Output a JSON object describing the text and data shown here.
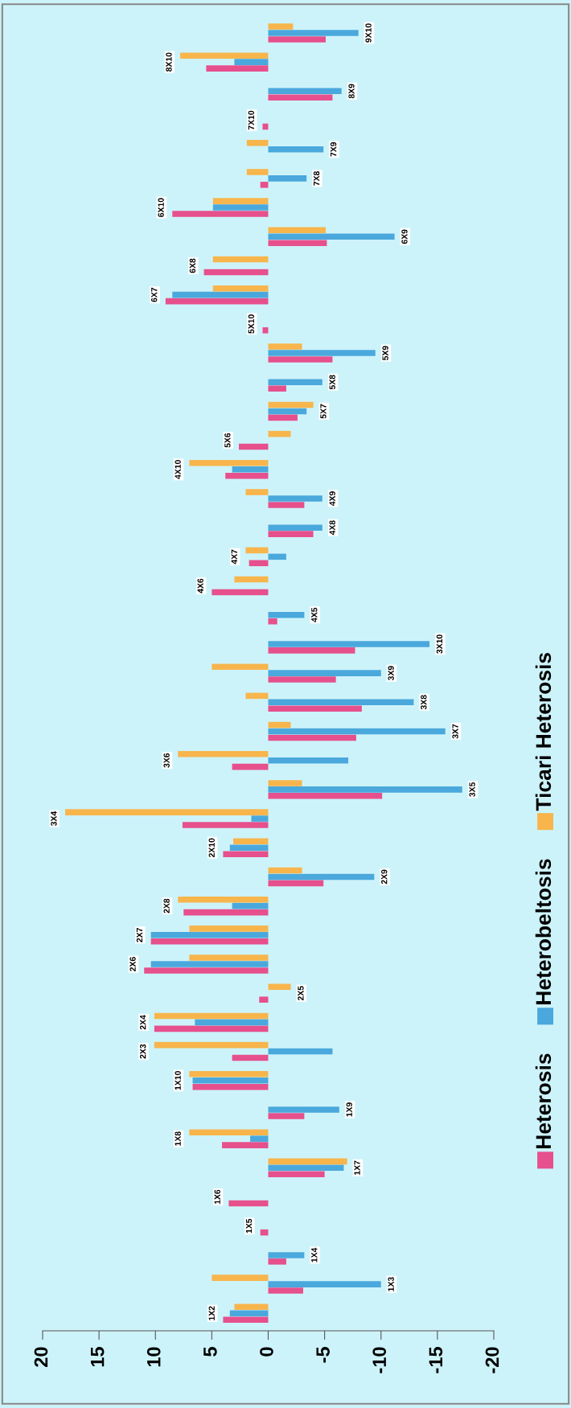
{
  "chart_data": {
    "type": "bar",
    "orientation": "horizontal",
    "categories": [
      "9X10",
      "8X10",
      "8X9",
      "7X10",
      "7X9",
      "7X8",
      "6X10",
      "6X9",
      "6X8",
      "6X7",
      "5X10",
      "5X9",
      "5X8",
      "5X7",
      "5X6",
      "4X10",
      "4X9",
      "4X8",
      "4X7",
      "4X6",
      "4X5",
      "3X10",
      "3X9",
      "3X8",
      "3X7",
      "3X6",
      "3X5",
      "3X4",
      "2X10",
      "2X9",
      "2X8",
      "2X7",
      "2X6",
      "2X5",
      "2X4",
      "2X3",
      "1X10",
      "1X9",
      "1X8",
      "1X7",
      "1X6",
      "1X5",
      "1X4",
      "1X3",
      "1X2"
    ],
    "series": [
      {
        "name": "Heterosis",
        "color": "#e6508c",
        "values": [
          -5.1,
          5.5,
          -5.7,
          0.5,
          null,
          0.7,
          8.5,
          -5.2,
          5.7,
          9.1,
          0.5,
          -5.7,
          -1.6,
          -2.6,
          2.6,
          3.8,
          -3.2,
          -4.0,
          1.7,
          5.0,
          -0.8,
          -7.7,
          -6.0,
          -8.3,
          -7.8,
          3.2,
          -10.1,
          7.6,
          4.0,
          -4.9,
          7.5,
          10.4,
          11.0,
          0.8,
          10.1,
          3.2,
          6.7,
          -3.2,
          4.1,
          -5.0,
          3.5,
          0.7,
          -1.6,
          -3.1,
          4.0
        ]
      },
      {
        "name": "Heterobeltosis",
        "color": "#4aa8dc",
        "values": [
          -8.0,
          3.0,
          -6.5,
          null,
          -4.9,
          -3.4,
          4.9,
          -11.2,
          null,
          8.5,
          null,
          -9.5,
          -4.8,
          -3.4,
          null,
          3.2,
          -4.8,
          -4.8,
          -1.6,
          null,
          -3.2,
          -14.3,
          -10.0,
          -12.9,
          -15.7,
          -7.1,
          -17.2,
          1.5,
          3.4,
          -9.4,
          3.2,
          10.4,
          10.4,
          null,
          6.5,
          -5.7,
          6.7,
          -6.3,
          1.6,
          -6.7,
          null,
          null,
          -3.2,
          -10.0,
          3.4
        ]
      },
      {
        "name": "Ticari Heterosis",
        "color": "#f7b54c",
        "values": [
          -2.2,
          7.8,
          null,
          null,
          1.9,
          1.9,
          4.9,
          -5.1,
          4.9,
          4.9,
          null,
          -3.0,
          null,
          -4.0,
          -2.0,
          7.0,
          2.0,
          null,
          2.0,
          3.0,
          null,
          null,
          5.0,
          2.0,
          -2.0,
          8.0,
          -3.0,
          18.0,
          3.1,
          -3.0,
          8.0,
          7.0,
          7.0,
          -2.0,
          10.1,
          10.1,
          7.0,
          null,
          7.0,
          -7.0,
          null,
          null,
          null,
          5.0,
          3.0
        ]
      }
    ],
    "xlim": [
      20,
      -20
    ],
    "xticks": [
      20,
      15,
      10,
      5,
      0,
      -5,
      -10,
      -15,
      -20
    ],
    "legend": "right",
    "grid": false
  }
}
